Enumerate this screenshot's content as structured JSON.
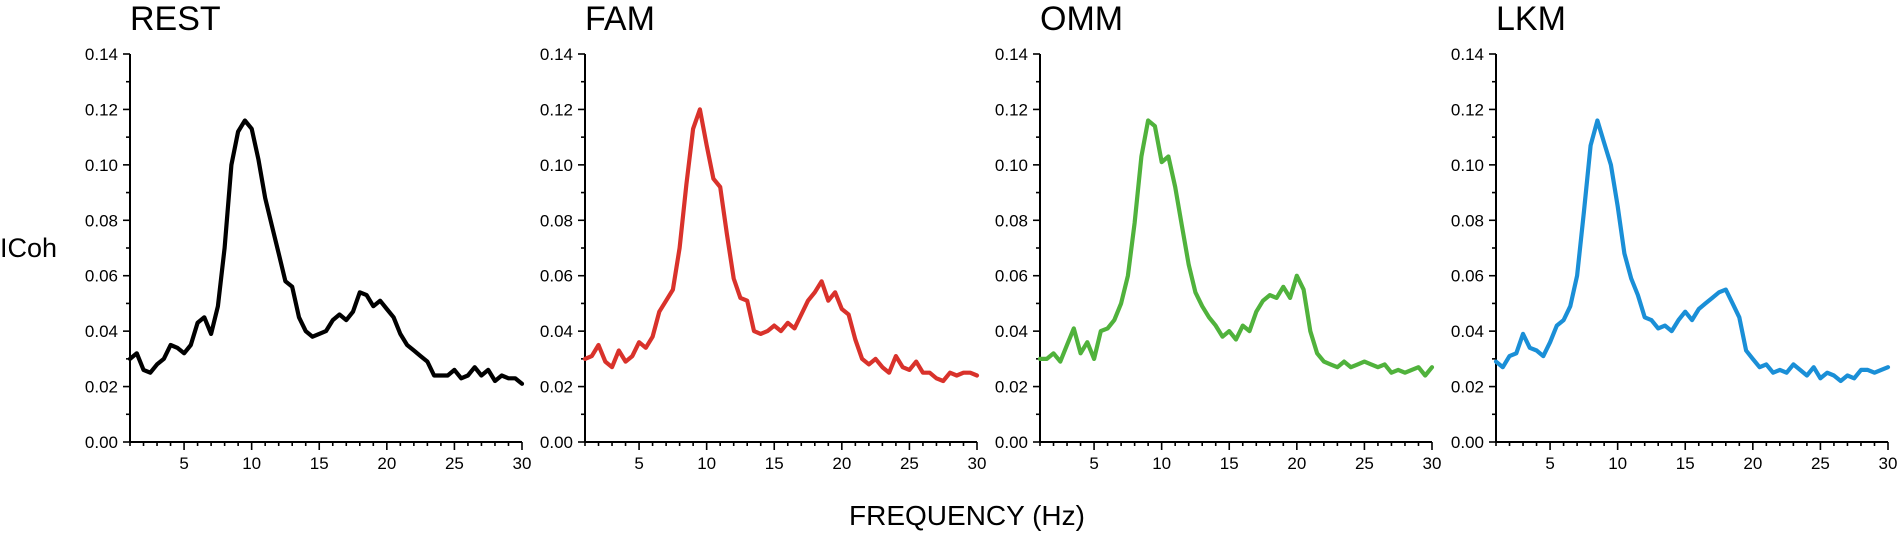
{
  "figure": {
    "ylabel": "ICoh",
    "xlabel": "FREQUENCY (Hz)"
  },
  "chart_data": [
    {
      "type": "line",
      "title": "REST",
      "color": "#000000",
      "xlim": [
        1,
        30
      ],
      "ylim": [
        0,
        0.14
      ],
      "xticks": [
        5,
        10,
        15,
        20,
        25,
        30
      ],
      "xtick_labels": [
        "5",
        "10",
        "15",
        "20",
        "25",
        "30"
      ],
      "yticks": [
        0,
        0.02,
        0.04,
        0.06,
        0.08,
        0.1,
        0.12,
        0.14
      ],
      "ytick_labels": [
        "0.00",
        "0.02",
        "0.04",
        "0.06",
        "0.08",
        "0.10",
        "0.12",
        "0.14"
      ],
      "x": [
        1,
        1.5,
        2,
        2.5,
        3,
        3.5,
        4,
        4.5,
        5,
        5.5,
        6,
        6.5,
        7,
        7.5,
        8,
        8.5,
        9,
        9.5,
        10,
        10.5,
        11,
        11.5,
        12,
        12.5,
        13,
        13.5,
        14,
        14.5,
        15,
        15.5,
        16,
        16.5,
        17,
        17.5,
        18,
        18.5,
        19,
        19.5,
        20,
        20.5,
        21,
        21.5,
        22,
        22.5,
        23,
        23.5,
        24,
        24.5,
        25,
        25.5,
        26,
        26.5,
        27,
        27.5,
        28,
        28.5,
        29,
        29.5,
        30
      ],
      "y": [
        0.03,
        0.032,
        0.026,
        0.025,
        0.028,
        0.03,
        0.035,
        0.034,
        0.032,
        0.035,
        0.043,
        0.045,
        0.039,
        0.049,
        0.07,
        0.1,
        0.112,
        0.116,
        0.113,
        0.102,
        0.088,
        0.078,
        0.068,
        0.058,
        0.056,
        0.045,
        0.04,
        0.038,
        0.039,
        0.04,
        0.044,
        0.046,
        0.044,
        0.047,
        0.054,
        0.053,
        0.049,
        0.051,
        0.048,
        0.045,
        0.039,
        0.035,
        0.033,
        0.031,
        0.029,
        0.024,
        0.024,
        0.024,
        0.026,
        0.023,
        0.024,
        0.027,
        0.024,
        0.026,
        0.022,
        0.024,
        0.023,
        0.023,
        0.021
      ]
    },
    {
      "type": "line",
      "title": "FAM",
      "color": "#d9322b",
      "xlim": [
        1,
        30
      ],
      "ylim": [
        0,
        0.14
      ],
      "xticks": [
        5,
        10,
        15,
        20,
        25,
        30
      ],
      "xtick_labels": [
        "5",
        "10",
        "15",
        "20",
        "25",
        "30"
      ],
      "yticks": [
        0,
        0.02,
        0.04,
        0.06,
        0.08,
        0.1,
        0.12,
        0.14
      ],
      "ytick_labels": [
        "0.00",
        "0.02",
        "0.04",
        "0.06",
        "0.08",
        "0.10",
        "0.12",
        "0.14"
      ],
      "x": [
        1,
        1.5,
        2,
        2.5,
        3,
        3.5,
        4,
        4.5,
        5,
        5.5,
        6,
        6.5,
        7,
        7.5,
        8,
        8.5,
        9,
        9.5,
        10,
        10.5,
        11,
        11.5,
        12,
        12.5,
        13,
        13.5,
        14,
        14.5,
        15,
        15.5,
        16,
        16.5,
        17,
        17.5,
        18,
        18.5,
        19,
        19.5,
        20,
        20.5,
        21,
        21.5,
        22,
        22.5,
        23,
        23.5,
        24,
        24.5,
        25,
        25.5,
        26,
        26.5,
        27,
        27.5,
        28,
        28.5,
        29,
        29.5,
        30
      ],
      "y": [
        0.03,
        0.031,
        0.035,
        0.029,
        0.027,
        0.033,
        0.029,
        0.031,
        0.036,
        0.034,
        0.038,
        0.047,
        0.051,
        0.055,
        0.07,
        0.093,
        0.113,
        0.12,
        0.107,
        0.095,
        0.092,
        0.075,
        0.059,
        0.052,
        0.051,
        0.04,
        0.039,
        0.04,
        0.042,
        0.04,
        0.043,
        0.041,
        0.046,
        0.051,
        0.054,
        0.058,
        0.051,
        0.054,
        0.048,
        0.046,
        0.037,
        0.03,
        0.028,
        0.03,
        0.027,
        0.025,
        0.031,
        0.027,
        0.026,
        0.029,
        0.025,
        0.025,
        0.023,
        0.022,
        0.025,
        0.024,
        0.025,
        0.025,
        0.024
      ]
    },
    {
      "type": "line",
      "title": "OMM",
      "color": "#50b23c",
      "xlim": [
        1,
        30
      ],
      "ylim": [
        0,
        0.14
      ],
      "xticks": [
        5,
        10,
        15,
        20,
        25,
        30
      ],
      "xtick_labels": [
        "5",
        "10",
        "15",
        "20",
        "25",
        "30"
      ],
      "yticks": [
        0,
        0.02,
        0.04,
        0.06,
        0.08,
        0.1,
        0.12,
        0.14
      ],
      "ytick_labels": [
        "0.00",
        "0.02",
        "0.04",
        "0.06",
        "0.08",
        "0.10",
        "0.12",
        "0.14"
      ],
      "x": [
        1,
        1.5,
        2,
        2.5,
        3,
        3.5,
        4,
        4.5,
        5,
        5.5,
        6,
        6.5,
        7,
        7.5,
        8,
        8.5,
        9,
        9.5,
        10,
        10.5,
        11,
        11.5,
        12,
        12.5,
        13,
        13.5,
        14,
        14.5,
        15,
        15.5,
        16,
        16.5,
        17,
        17.5,
        18,
        18.5,
        19,
        19.5,
        20,
        20.5,
        21,
        21.5,
        22,
        22.5,
        23,
        23.5,
        24,
        24.5,
        25,
        25.5,
        26,
        26.5,
        27,
        27.5,
        28,
        28.5,
        29,
        29.5,
        30
      ],
      "y": [
        0.03,
        0.03,
        0.032,
        0.029,
        0.035,
        0.041,
        0.032,
        0.036,
        0.03,
        0.04,
        0.041,
        0.044,
        0.05,
        0.06,
        0.079,
        0.103,
        0.116,
        0.114,
        0.101,
        0.103,
        0.092,
        0.078,
        0.064,
        0.054,
        0.049,
        0.045,
        0.042,
        0.038,
        0.04,
        0.037,
        0.042,
        0.04,
        0.047,
        0.051,
        0.053,
        0.052,
        0.056,
        0.052,
        0.06,
        0.055,
        0.04,
        0.032,
        0.029,
        0.028,
        0.027,
        0.029,
        0.027,
        0.028,
        0.029,
        0.028,
        0.027,
        0.028,
        0.025,
        0.026,
        0.025,
        0.026,
        0.027,
        0.024,
        0.027
      ]
    },
    {
      "type": "line",
      "title": "LKM",
      "color": "#1a8fd7",
      "xlim": [
        1,
        30
      ],
      "ylim": [
        0,
        0.14
      ],
      "xticks": [
        5,
        10,
        15,
        20,
        25,
        30
      ],
      "xtick_labels": [
        "5",
        "10",
        "15",
        "20",
        "25",
        "30"
      ],
      "yticks": [
        0,
        0.02,
        0.04,
        0.06,
        0.08,
        0.1,
        0.12,
        0.14
      ],
      "ytick_labels": [
        "0.00",
        "0.02",
        "0.04",
        "0.06",
        "0.08",
        "0.10",
        "0.12",
        "0.14"
      ],
      "x": [
        1,
        1.5,
        2,
        2.5,
        3,
        3.5,
        4,
        4.5,
        5,
        5.5,
        6,
        6.5,
        7,
        7.5,
        8,
        8.5,
        9,
        9.5,
        10,
        10.5,
        11,
        11.5,
        12,
        12.5,
        13,
        13.5,
        14,
        14.5,
        15,
        15.5,
        16,
        16.5,
        17,
        17.5,
        18,
        18.5,
        19,
        19.5,
        20,
        20.5,
        21,
        21.5,
        22,
        22.5,
        23,
        23.5,
        24,
        24.5,
        25,
        25.5,
        26,
        26.5,
        27,
        27.5,
        28,
        28.5,
        29,
        29.5,
        30
      ],
      "y": [
        0.029,
        0.027,
        0.031,
        0.032,
        0.039,
        0.034,
        0.033,
        0.031,
        0.036,
        0.042,
        0.044,
        0.049,
        0.06,
        0.083,
        0.107,
        0.116,
        0.108,
        0.1,
        0.085,
        0.068,
        0.059,
        0.053,
        0.045,
        0.044,
        0.041,
        0.042,
        0.04,
        0.044,
        0.047,
        0.044,
        0.048,
        0.05,
        0.052,
        0.054,
        0.055,
        0.05,
        0.045,
        0.033,
        0.03,
        0.027,
        0.028,
        0.025,
        0.026,
        0.025,
        0.028,
        0.026,
        0.024,
        0.027,
        0.023,
        0.025,
        0.024,
        0.022,
        0.024,
        0.023,
        0.026,
        0.026,
        0.025,
        0.026,
        0.027
      ]
    }
  ]
}
